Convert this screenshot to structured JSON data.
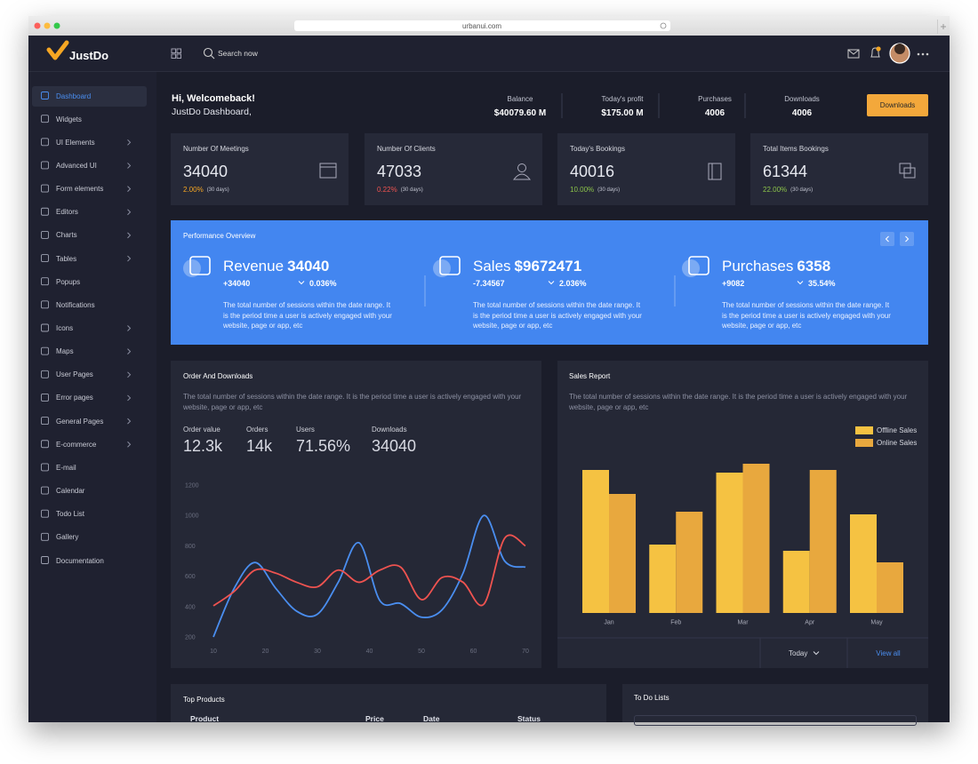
{
  "browser": {
    "url": "urbanui.com"
  },
  "brand": "JustDo",
  "header": {
    "search": "Search now"
  },
  "sidebar": {
    "items": [
      "Dashboard",
      "Widgets",
      "UI Elements",
      "Advanced UI",
      "Form elements",
      "Editors",
      "Charts",
      "Tables",
      "Popups",
      "Notifications",
      "Icons",
      "Maps",
      "User Pages",
      "Error pages",
      "General Pages",
      "E-commerce",
      "E-mail",
      "Calendar",
      "Todo List",
      "Gallery",
      "Documentation"
    ]
  },
  "welcome": {
    "greeting": "Hi, Welcomeback!",
    "subtitle": "JustDo Dashboard,"
  },
  "summary": [
    {
      "label": "Balance",
      "value": "$40079.60 M"
    },
    {
      "label": "Today's profit",
      "value": "$175.00 M"
    },
    {
      "label": "Purchases",
      "value": "4006"
    },
    {
      "label": "Downloads",
      "value": "4006"
    }
  ],
  "downloads_button": "Downloads",
  "stat_cards": [
    {
      "title": "Number Of Meetings",
      "value": "34040",
      "change": "2.00%",
      "period": "(30 days)",
      "color": "#f5a623"
    },
    {
      "title": "Number Of Clients",
      "value": "47033",
      "change": "0.22%",
      "period": "(30 days)",
      "color": "#ef5350"
    },
    {
      "title": "Today's Bookings",
      "value": "40016",
      "change": "10.00%",
      "period": "(30 days)",
      "color": "#8bc34a"
    },
    {
      "title": "Total Items Bookings",
      "value": "61344",
      "change": "22.00%",
      "period": "(30 days)",
      "color": "#8bc34a"
    }
  ],
  "performance": {
    "title": "Performance Overview",
    "items": [
      {
        "label": "Revenue",
        "value": "34040",
        "delta": "+34040",
        "change": "0.036%",
        "description": "The total number of sessions within the date range. It is the period time a user is actively engaged with your website, page or app, etc"
      },
      {
        "label": "Sales",
        "value": "$9672471",
        "delta": "-7.34567",
        "change": "2.036%",
        "description": "The total number of sessions within the date range. It is the period time a user is actively engaged with your website, page or app, etc"
      },
      {
        "label": "Purchases",
        "value": "6358",
        "delta": "+9082",
        "change": "35.54%",
        "description": "The total number of sessions within the date range. It is the period time a user is actively engaged with your website, page or app, etc"
      }
    ]
  },
  "order_panel": {
    "title": "Order And Downloads",
    "description": "The total number of sessions within the date range. It is the period time a user is actively engaged with your website, page or app, etc",
    "metrics": [
      {
        "label": "Order value",
        "value": "12.3k"
      },
      {
        "label": "Orders",
        "value": "14k"
      },
      {
        "label": "Users",
        "value": "71.56%"
      },
      {
        "label": "Downloads",
        "value": "34040"
      }
    ],
    "chart": {
      "type": "line",
      "x": [
        10,
        14,
        18,
        22,
        26,
        30,
        34,
        38,
        42,
        46,
        50,
        54,
        58,
        62,
        66,
        70
      ],
      "series": [
        {
          "color": "#4a8ef0",
          "values": [
            200,
            520,
            690,
            520,
            370,
            350,
            560,
            820,
            440,
            420,
            330,
            380,
            620,
            1000,
            700,
            660
          ]
        },
        {
          "color": "#ef5350",
          "values": [
            405,
            500,
            640,
            620,
            560,
            530,
            640,
            560,
            640,
            660,
            446,
            592,
            560,
            416,
            850,
            800
          ]
        }
      ],
      "xlim": [
        10,
        70
      ],
      "ylim": [
        200,
        1200
      ],
      "xticks": [
        10,
        20,
        30,
        40,
        50,
        60,
        70
      ],
      "yticks": [
        200,
        400,
        600,
        800,
        1000,
        1200
      ]
    }
  },
  "sales_panel": {
    "title": "Sales Report",
    "description": "The total number of sessions within the date range. It is the period time a user is actively engaged with your website, page or app, etc",
    "chart": {
      "type": "bar",
      "categories": [
        "Jan",
        "Feb",
        "Mar",
        "Apr",
        "May"
      ],
      "series": [
        {
          "name": "Offline Sales",
          "color": "#f5c242",
          "values": [
            161,
            77,
            158,
            70,
            111
          ]
        },
        {
          "name": "Online Sales",
          "color": "#e8a83e",
          "values": [
            134,
            114,
            168,
            161,
            57
          ]
        }
      ],
      "ylim": [
        0,
        180
      ],
      "legend": "top-right"
    },
    "filter": "Today",
    "view_all": "View all"
  },
  "top_products": {
    "title": "Top Products",
    "columns": [
      "Product",
      "Price",
      "Date",
      "Status"
    ]
  },
  "todo": {
    "title": "To Do Lists"
  }
}
